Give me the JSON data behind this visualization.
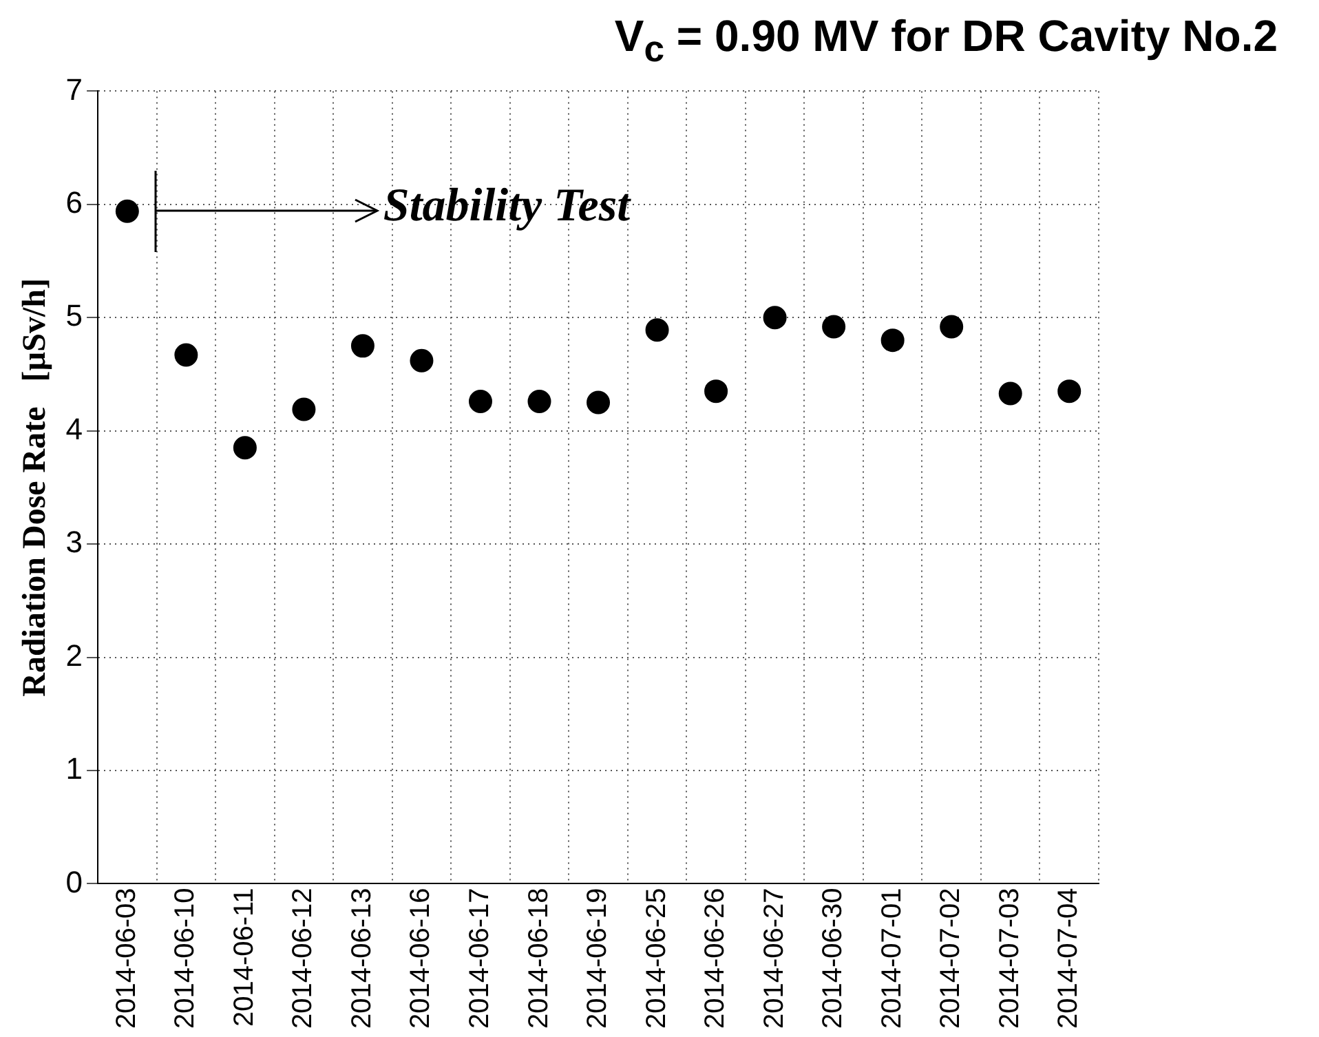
{
  "chart_data": {
    "type": "scatter",
    "title": "V$_{c}$ = 0.90 MV  for DR Cavity No.2",
    "ylabel": "Radiation Dose Rate   [µSv/h]",
    "categories": [
      "2014-06-03",
      "2014-06-10",
      "2014-06-11",
      "2014-06-12",
      "2014-06-13",
      "2014-06-16",
      "2014-06-17",
      "2014-06-18",
      "2014-06-19",
      "2014-06-25",
      "2014-06-26",
      "2014-06-27",
      "2014-06-30",
      "2014-07-01",
      "2014-07-02",
      "2014-07-03",
      "2014-07-04"
    ],
    "series": [
      {
        "color": "#000000",
        "values": [
          5.94,
          4.67,
          3.85,
          4.19,
          4.75,
          4.62,
          4.26,
          4.26,
          4.25,
          4.89,
          4.35,
          5.0,
          4.92,
          4.8,
          4.92,
          4.33,
          4.35
        ]
      }
    ],
    "ylim": [
      0,
      7
    ],
    "yticks": [
      0,
      1,
      2,
      3,
      4,
      5,
      6,
      7
    ],
    "grid": true,
    "legend": false,
    "marker": "circle",
    "annotations": [
      "Stability Test"
    ]
  }
}
